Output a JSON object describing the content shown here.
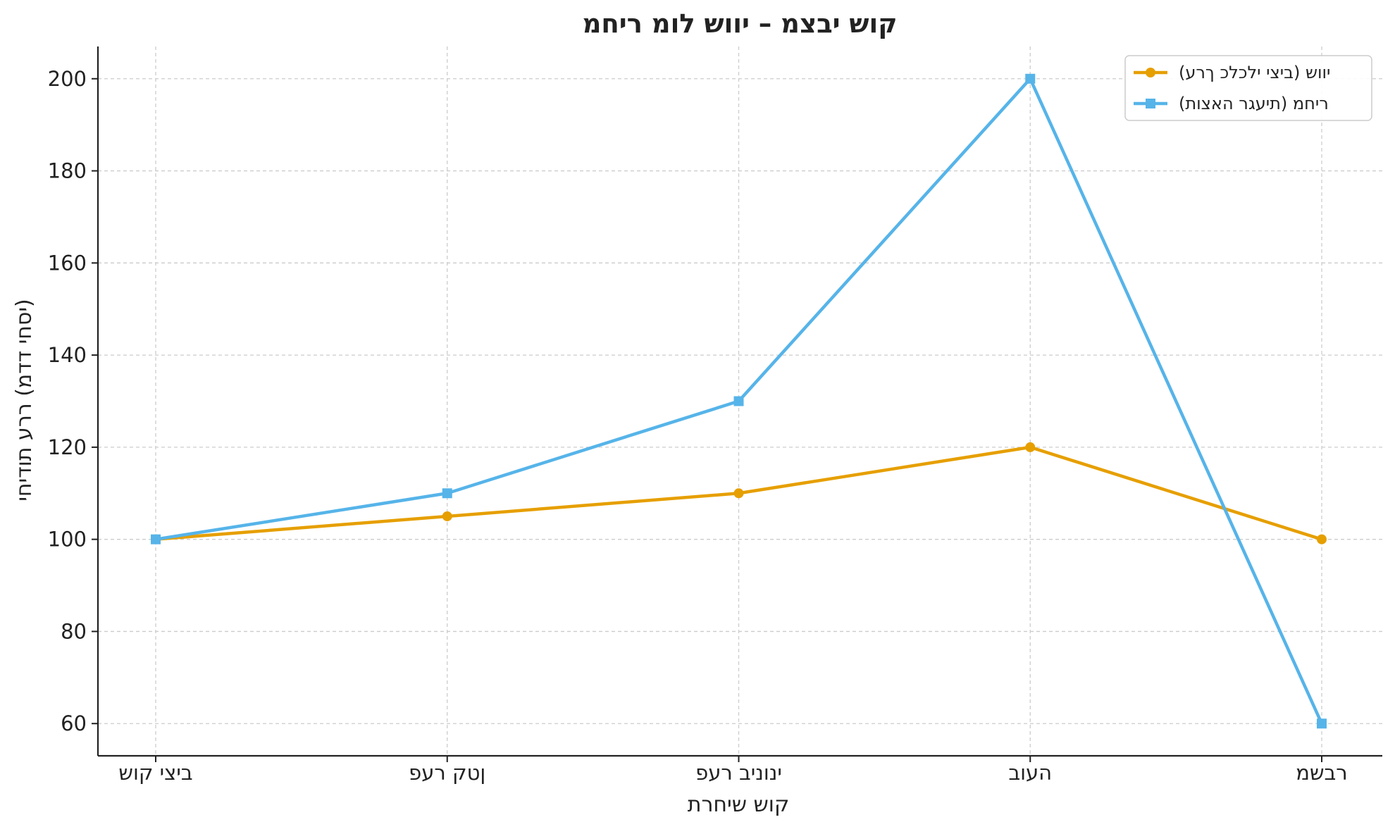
{
  "chart_data": {
    "type": "line",
    "title": "קוש יבצמ – יווש לומ ריחמ",
    "xlabel": "קוש שיחרת",
    "ylabel": "יסחי דדמ) ררע תודיחי)",
    "categories": [
      "ביצי קוש",
      "ןטק רעפ",
      "ינוניב רעפ",
      "העוב",
      "רבשמ"
    ],
    "ylim": [
      53,
      207
    ],
    "yticks": [
      60,
      80,
      100,
      120,
      140,
      160,
      180,
      200
    ],
    "grid": true,
    "legend_position": "top-right",
    "series": [
      {
        "name": "יווש (ביצי ילכלכ ךרע)",
        "values": [
          100,
          105,
          110,
          120,
          100
        ],
        "color": "#E69F00",
        "marker": "circle"
      },
      {
        "name": "ריחמ (תיעגר האצות)",
        "values": [
          100,
          110,
          130,
          200,
          60
        ],
        "color": "#56B4E9",
        "marker": "square"
      }
    ]
  }
}
